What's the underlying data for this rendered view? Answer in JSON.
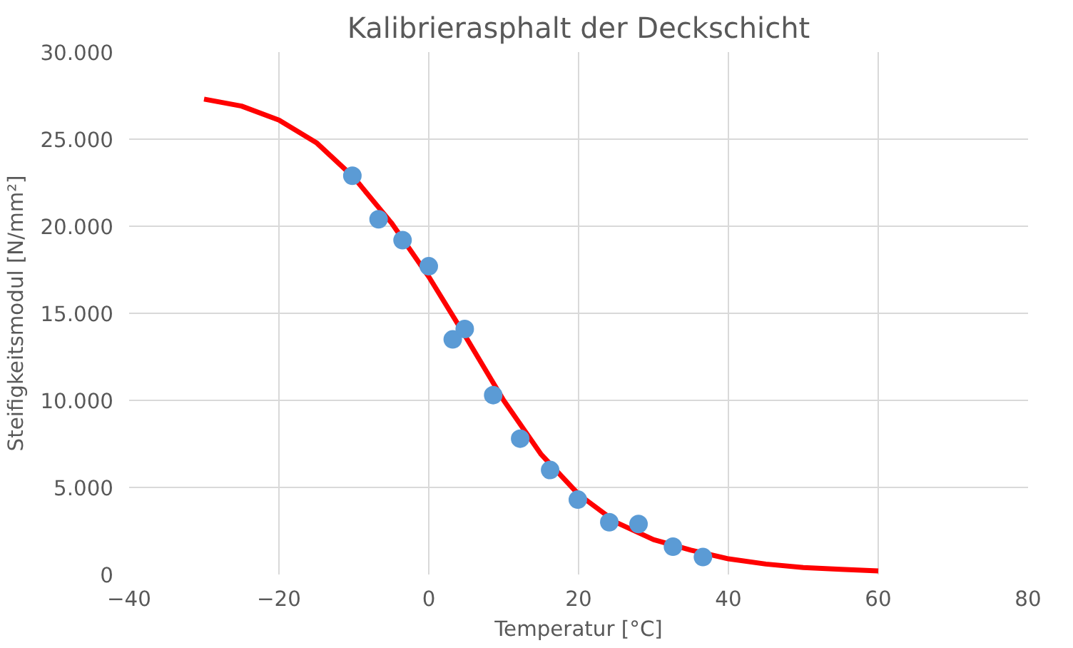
{
  "chart_data": {
    "type": "line",
    "title": "Kalibrierasphalt der Deckschicht",
    "xlabel": "Temperatur [°C]",
    "ylabel": "Steifigkeitsmodul [N/mm²]",
    "series": [
      {
        "color": "#ff0000",
        "x": [
          -30,
          -25,
          -20,
          -15,
          -10,
          -5,
          0,
          5,
          10,
          15,
          20,
          25,
          30,
          35,
          40,
          45,
          50,
          55,
          60
        ],
        "values": [
          27300,
          26900,
          26100,
          24800,
          22800,
          20200,
          17100,
          13600,
          10000,
          6900,
          4600,
          3000,
          2000,
          1400,
          900,
          600,
          400,
          300,
          200
        ]
      },
      {
        "type": "scatter",
        "marker": "circle",
        "color": "#5b9bd5",
        "x": [
          -10.2,
          -6.7,
          -3.5,
          0,
          3.2,
          4.8,
          8.6,
          12.2,
          16.2,
          19.9,
          24.1,
          28,
          32.6,
          36.6
        ],
        "values": [
          22900,
          20400,
          19200,
          17700,
          13500,
          14100,
          10300,
          7800,
          6000,
          4300,
          3000,
          2900,
          1600,
          1000
        ]
      }
    ],
    "xlim": [
      -40,
      80
    ],
    "xticks": [
      -40,
      -20,
      0,
      20,
      40,
      60,
      80
    ],
    "ylim": [
      0,
      30000
    ],
    "yticks": [
      {
        "value": 0,
        "label": "0"
      },
      {
        "value": 5000,
        "label": "5.000"
      },
      {
        "value": 10000,
        "label": "10.000"
      },
      {
        "value": 15000,
        "label": "15.000"
      },
      {
        "value": 20000,
        "label": "20.000"
      },
      {
        "value": 25000,
        "label": "25.000"
      },
      {
        "value": 30000,
        "label": "30.000"
      }
    ],
    "grid": true
  }
}
